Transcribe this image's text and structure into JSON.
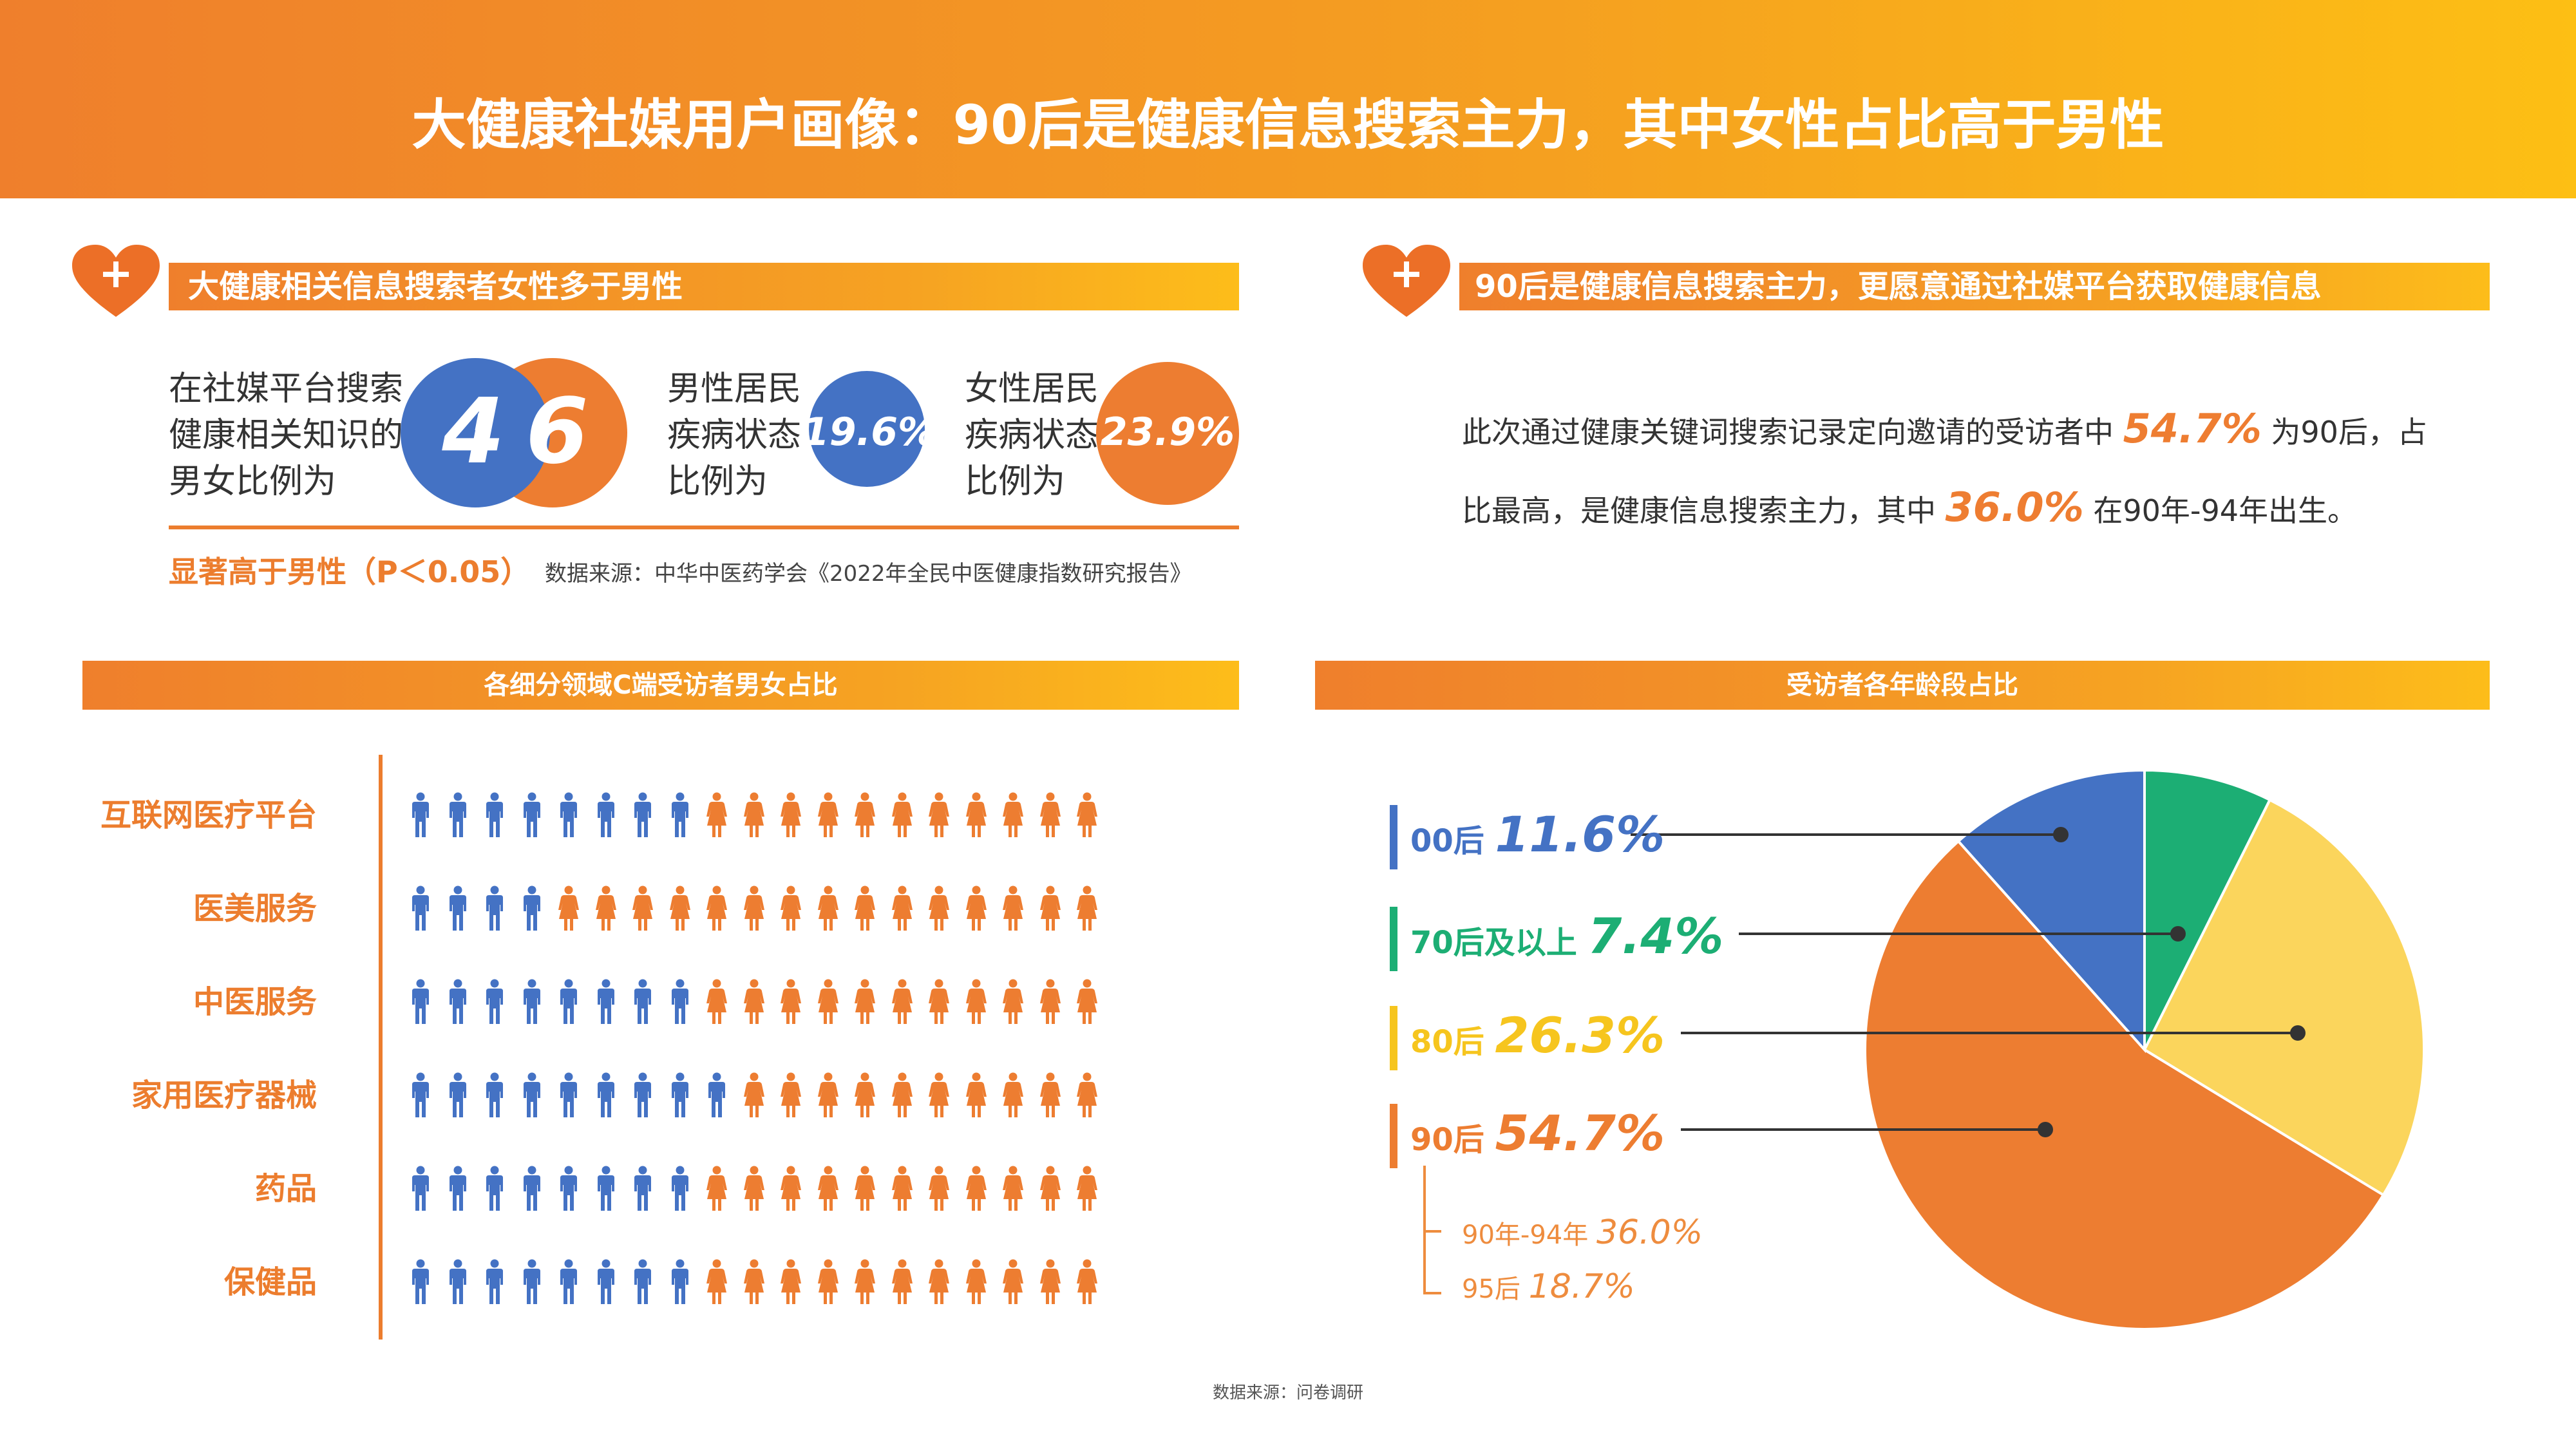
{
  "title": "大健康社媒用户画像：90后是健康信息搜索主力，其中女性占比高于男性",
  "left_section": {
    "header": "大健康相关信息搜索者女性多于男性",
    "stat1_text": [
      "在社媒平台搜索",
      "健康相关知识的",
      "男女比例为"
    ],
    "ratio_male": "4",
    "ratio_sep": ":",
    "ratio_female": "6",
    "stat2_text": [
      "男性居民",
      "疾病状态",
      "比例为"
    ],
    "stat2_value": "19.6%",
    "stat3_text": [
      "女性居民",
      "疾病状态",
      "比例为"
    ],
    "stat3_value": "23.9%",
    "note_highlight": "显著高于男性（P＜0.05）",
    "note_source": "数据来源：中华中医药学会《2022年全民中医健康指数研究报告》"
  },
  "right_section": {
    "header": "90后是健康信息搜索主力，更愿意通过社媒平台获取健康信息",
    "para_line1_before": "此次通过健康关键词搜索记录定向邀请的受访者中 ",
    "para_line1_highlight": "54.7%",
    "para_line1_after": " 为90后，占",
    "para_line2_before": "比最高，是健康信息搜索主力，其中 ",
    "para_line2_highlight": "36.0%",
    "para_line2_after": " 在90年-94年出生。"
  },
  "footer": "数据来源：问卷调研",
  "colors": {
    "male": "#4472c4",
    "female": "#ed7d31",
    "orange": "#ec7d2e",
    "green": "#1cae74",
    "yellow": "#fbd55c"
  },
  "chart_data": [
    {
      "type": "pictograph",
      "title": "各细分领域C端受访者男女占比",
      "icons_per_row": 19,
      "categories": [
        "互联网医疗平台",
        "医美服务",
        "中医服务",
        "家用医疗器械",
        "药品",
        "保健品"
      ],
      "series": [
        {
          "name": "男",
          "icon": "male-person-icon",
          "values": [
            8,
            4,
            8,
            9,
            8,
            8
          ]
        },
        {
          "name": "女",
          "icon": "female-person-icon",
          "values": [
            11,
            15,
            11,
            10,
            11,
            11
          ]
        }
      ]
    },
    {
      "type": "pie",
      "title": "受访者各年龄段占比",
      "slices": [
        {
          "label": "70后及以上",
          "value": 7.4,
          "display": "7.4%",
          "color": "#1cae74"
        },
        {
          "label": "80后",
          "value": 26.3,
          "display": "26.3%",
          "color": "#fbd55c"
        },
        {
          "label": "90后",
          "value": 54.7,
          "display": "54.7%",
          "color": "#ed7d31"
        },
        {
          "label": "00后",
          "value": 11.6,
          "display": "11.6%",
          "color": "#4472c4"
        }
      ],
      "legend": [
        {
          "label": "00后",
          "display": "11.6%",
          "color": "#4472c4"
        },
        {
          "label": "70后及以上",
          "display": "7.4%",
          "color": "#1cae74"
        },
        {
          "label": "80后",
          "display": "26.3%",
          "color": "#f6c51e"
        },
        {
          "label": "90后",
          "display": "54.7%",
          "color": "#ed7d31"
        }
      ],
      "sub_breakdown": [
        {
          "label": "90年-94年",
          "display": "36.0%"
        },
        {
          "label": "95后",
          "display": "18.7%"
        }
      ]
    }
  ]
}
